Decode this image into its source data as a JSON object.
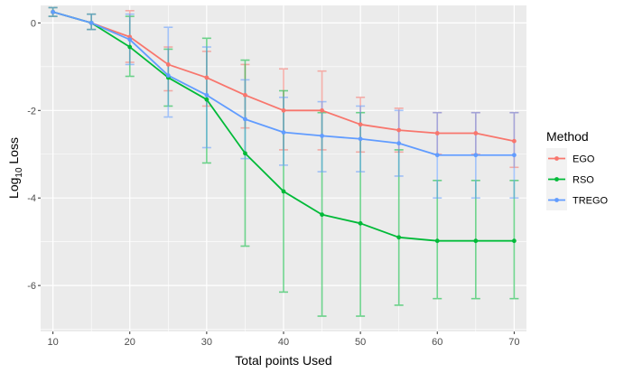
{
  "chart_data": {
    "type": "line",
    "xlabel": "Total points Used",
    "ylabel_base": "Log",
    "ylabel_sub": "10",
    "ylabel_rest": " Loss",
    "x": [
      10,
      15,
      20,
      25,
      30,
      35,
      40,
      45,
      50,
      55,
      60,
      65,
      70
    ],
    "xticks": [
      10,
      20,
      30,
      40,
      50,
      60,
      70
    ],
    "xtick_labels": [
      "10",
      "20",
      "30",
      "40",
      "50",
      "60",
      "70"
    ],
    "yticks": [
      0,
      -2,
      -4,
      -6
    ],
    "ytick_labels": [
      "0",
      "-2",
      "-4",
      "-6"
    ],
    "xlim": [
      8.4,
      71.6
    ],
    "ylim": [
      -7.05,
      0.4
    ],
    "grid": true,
    "legend": {
      "title": "Method",
      "placement": "right",
      "entries": [
        "EGO",
        "RSO",
        "TREGO"
      ]
    },
    "series": [
      {
        "name": "EGO",
        "color": "#F8766D",
        "values": [
          0.25,
          0.0,
          -0.32,
          -0.95,
          -1.25,
          -1.65,
          -2.0,
          -2.0,
          -2.32,
          -2.45,
          -2.52,
          -2.52,
          -2.7
        ],
        "err_low": [
          0.15,
          -0.15,
          -0.9,
          -1.55,
          -1.9,
          -2.4,
          -2.9,
          -2.9,
          -2.95,
          -2.95,
          -3.0,
          -3.0,
          -3.3
        ],
        "err_high": [
          0.35,
          0.2,
          0.28,
          -0.55,
          -0.65,
          -0.95,
          -1.05,
          -1.1,
          -1.7,
          -1.95,
          -2.05,
          -2.05,
          -2.05
        ]
      },
      {
        "name": "RSO",
        "color": "#00BA38",
        "values": [
          0.25,
          0.0,
          -0.55,
          -1.25,
          -1.75,
          -2.98,
          -3.85,
          -4.38,
          -4.58,
          -4.9,
          -4.98,
          -4.98,
          -4.98
        ],
        "err_low": [
          0.15,
          -0.15,
          -1.22,
          -1.9,
          -3.2,
          -5.1,
          -6.15,
          -6.7,
          -6.7,
          -6.45,
          -6.3,
          -6.3,
          -6.3
        ],
        "err_high": [
          0.35,
          0.2,
          0.15,
          -0.6,
          -0.35,
          -0.85,
          -1.55,
          -2.05,
          -2.05,
          -2.9,
          -3.6,
          -3.6,
          -3.6
        ]
      },
      {
        "name": "TREGO",
        "color": "#619CFF",
        "values": [
          0.25,
          0.0,
          -0.38,
          -1.2,
          -1.65,
          -2.2,
          -2.5,
          -2.58,
          -2.65,
          -2.75,
          -3.02,
          -3.02,
          -3.02
        ],
        "err_low": [
          0.15,
          -0.15,
          -0.95,
          -2.15,
          -2.85,
          -3.1,
          -3.25,
          -3.4,
          -3.4,
          -3.5,
          -4.0,
          -4.0,
          -4.0
        ],
        "err_high": [
          0.35,
          0.2,
          0.2,
          -0.1,
          -0.55,
          -1.3,
          -1.7,
          -1.8,
          -1.9,
          -2.0,
          -2.05,
          -2.05,
          -2.05
        ]
      }
    ]
  }
}
